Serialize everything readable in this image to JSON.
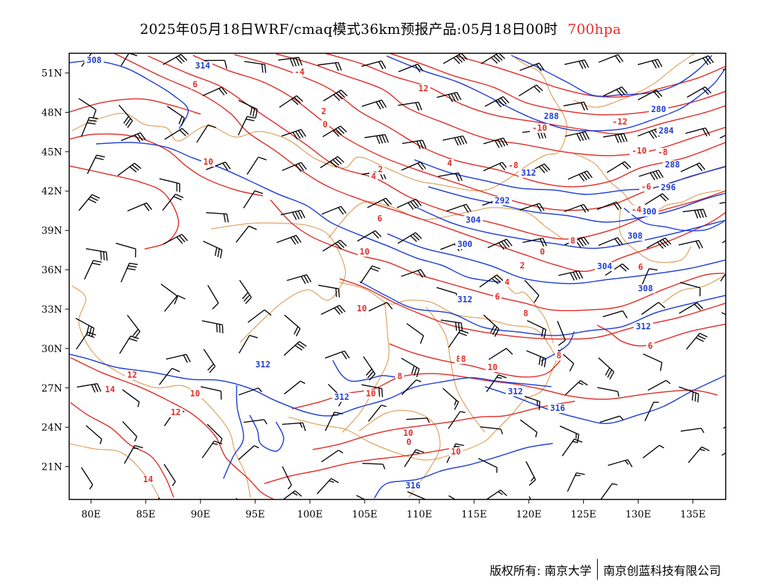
{
  "title": {
    "main": "2025年05月18日WRF/cmaq模式36km预报产品:05月18日00时",
    "level": "700hpa"
  },
  "map": {
    "lon_range": [
      78,
      138
    ],
    "lat_range": [
      18.5,
      52.5
    ],
    "lon_ticks": [
      "80E",
      "85E",
      "90E",
      "95E",
      "100E",
      "105E",
      "110E",
      "115E",
      "120E",
      "125E",
      "130E",
      "135E"
    ],
    "lat_ticks": [
      "51N",
      "48N",
      "45N",
      "42N",
      "39N",
      "36N",
      "33N",
      "30N",
      "27N",
      "24N",
      "21N"
    ],
    "colors": {
      "height_contour": "#1f3fd6",
      "temperature_contour": "#e0302a",
      "borders": "#d98c3a",
      "wind_barbs": "#000000"
    },
    "height_labels": [
      "308",
      "314",
      "288",
      "280",
      "284",
      "288",
      "312",
      "296",
      "292",
      "300",
      "304",
      "308",
      "300",
      "304",
      "308",
      "312",
      "312",
      "312",
      "312",
      "312",
      "316",
      "316"
    ],
    "temperature_labels": [
      "6",
      "-4",
      "12",
      "2",
      "0",
      "-10",
      "-12",
      "-10",
      "-8",
      "10",
      "2",
      "4",
      "-8",
      "-6",
      "4",
      "-4",
      "6",
      "8",
      "10",
      "6",
      "10",
      "0",
      "2",
      "4",
      "6",
      "8",
      "6",
      "8",
      "10",
      "14",
      "12",
      "10",
      "14",
      "8",
      "10",
      "10",
      "8",
      "10",
      "0",
      "12",
      "8"
    ]
  },
  "footer": {
    "left": "版权所有: 南京大学",
    "right": "南京创蓝科技有限公司"
  }
}
